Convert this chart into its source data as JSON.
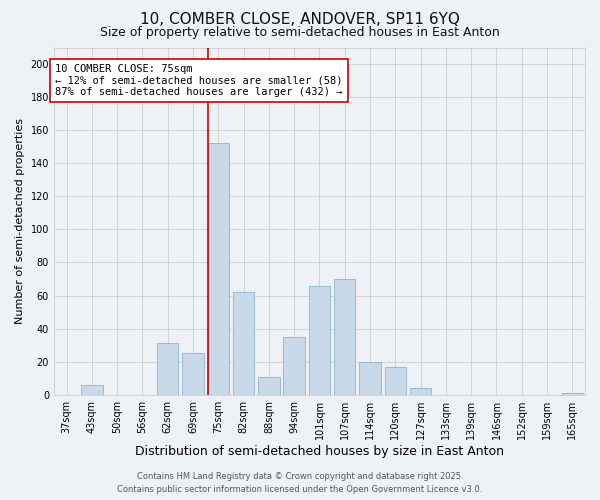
{
  "title": "10, COMBER CLOSE, ANDOVER, SP11 6YQ",
  "subtitle": "Size of property relative to semi-detached houses in East Anton",
  "xlabel": "Distribution of semi-detached houses by size in East Anton",
  "ylabel": "Number of semi-detached properties",
  "footer_line1": "Contains HM Land Registry data © Crown copyright and database right 2025.",
  "footer_line2": "Contains public sector information licensed under the Open Government Licence v3.0.",
  "bar_labels": [
    "37sqm",
    "43sqm",
    "50sqm",
    "56sqm",
    "62sqm",
    "69sqm",
    "75sqm",
    "82sqm",
    "88sqm",
    "94sqm",
    "101sqm",
    "107sqm",
    "114sqm",
    "120sqm",
    "127sqm",
    "133sqm",
    "139sqm",
    "146sqm",
    "152sqm",
    "159sqm",
    "165sqm"
  ],
  "bar_values": [
    0,
    6,
    0,
    0,
    31,
    25,
    152,
    62,
    11,
    35,
    66,
    70,
    20,
    17,
    4,
    0,
    0,
    0,
    0,
    0,
    1
  ],
  "bar_color": "#c8daea",
  "bar_edge_color": "#8ab4cc",
  "highlight_bar_index": 6,
  "highlight_line_color": "#cc0000",
  "annotation_title": "10 COMBER CLOSE: 75sqm",
  "annotation_line2": "← 12% of semi-detached houses are smaller (58)",
  "annotation_line3": "87% of semi-detached houses are larger (432) →",
  "annotation_box_edge_color": "#cc0000",
  "annotation_box_bg_color": "#ffffff",
  "ylim": [
    0,
    210
  ],
  "yticks": [
    0,
    20,
    40,
    60,
    80,
    100,
    120,
    140,
    160,
    180,
    200
  ],
  "grid_color": "#cccccc",
  "bg_color": "#eef2f7",
  "title_fontsize": 11,
  "subtitle_fontsize": 9,
  "xlabel_fontsize": 9,
  "ylabel_fontsize": 8,
  "tick_fontsize": 7,
  "annotation_fontsize": 7.5,
  "footer_fontsize": 6
}
